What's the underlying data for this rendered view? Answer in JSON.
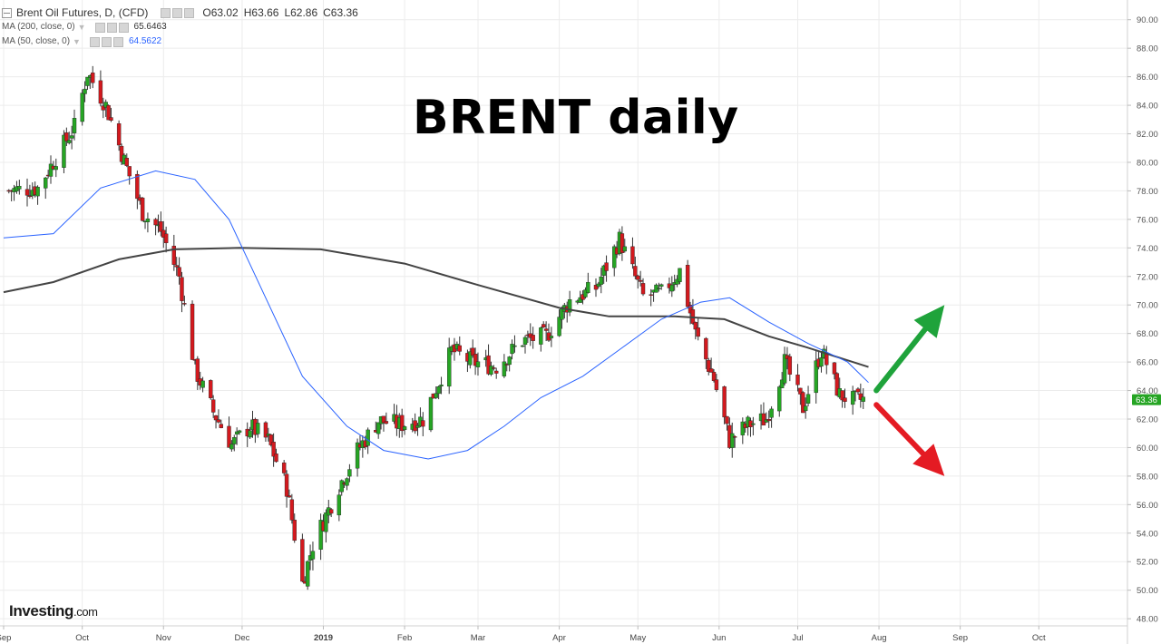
{
  "legend": {
    "symbol": "Brent Oil Futures, D, (CFD)",
    "ohlc": {
      "open": "O63.02",
      "high": "H63.66",
      "low": "L62.86",
      "close": "C63.36"
    },
    "ma200": {
      "label": "MA (200, close, 0)",
      "value": "65.6463",
      "color": "#444444"
    },
    "ma50": {
      "label": "MA (50, close, 0)",
      "value": "64.5622",
      "color": "#2962ff"
    }
  },
  "overlay_title": "BRENT daily",
  "logo": {
    "main": "Investing",
    "suffix": ".com"
  },
  "colors": {
    "up": "#26a524",
    "down": "#d3191e",
    "wick": "#333333",
    "grid": "#ececec",
    "price_tag": "#26a524",
    "arrow_up": "#1fa33b",
    "arrow_down": "#e41b23"
  },
  "icons": [
    "collapse-icon",
    "eye-icon",
    "settings-icon",
    "close-icon",
    "arrow-up-icon",
    "arrow-down-icon"
  ],
  "chart_data": {
    "type": "candlestick",
    "y_axis": {
      "ticks": [
        48,
        50,
        52,
        54,
        56,
        58,
        60,
        62,
        64,
        66,
        68,
        70,
        72,
        74,
        76,
        78,
        80,
        82,
        84,
        86,
        88,
        90
      ],
      "labels": [
        "48.00",
        "50.00",
        "52.00",
        "54.00",
        "56.00",
        "58.00",
        "60.00",
        "62.00",
        "64.00",
        "66.00",
        "68.00",
        "70.00",
        "72.00",
        "74.00",
        "76.00",
        "78.00",
        "80.00",
        "82.00",
        "84.00",
        "86.00",
        "88.00",
        "90.00"
      ],
      "range": [
        47.5,
        91.0
      ]
    },
    "x_axis": {
      "labels": [
        "Sep",
        "Oct",
        "Nov",
        "Dec",
        "2019",
        "Feb",
        "Mar",
        "Apr",
        "May",
        "Jun",
        "Jul",
        "Aug",
        "Sep",
        "Oct"
      ],
      "range": [
        "2018-09-01",
        "2019-10-31"
      ]
    },
    "last_price": "63.36",
    "key_points": [
      {
        "date": "2018-09-01",
        "close": 78.0
      },
      {
        "date": "2018-09-14",
        "close": 78.2
      },
      {
        "date": "2018-09-28",
        "close": 82.5
      },
      {
        "date": "2018-10-03",
        "close": 86.3
      },
      {
        "date": "2018-10-10",
        "close": 84.0
      },
      {
        "date": "2018-10-17",
        "close": 80.1
      },
      {
        "date": "2018-10-24",
        "close": 76.5
      },
      {
        "date": "2018-10-31",
        "close": 75.2
      },
      {
        "date": "2018-11-07",
        "close": 72.0
      },
      {
        "date": "2018-11-13",
        "close": 65.5
      },
      {
        "date": "2018-11-20",
        "close": 62.5
      },
      {
        "date": "2018-11-27",
        "close": 60.2
      },
      {
        "date": "2018-12-04",
        "close": 61.5
      },
      {
        "date": "2018-12-11",
        "close": 60.5
      },
      {
        "date": "2018-12-18",
        "close": 57.2
      },
      {
        "date": "2018-12-24",
        "close": 50.5
      },
      {
        "date": "2018-12-28",
        "close": 53.2
      },
      {
        "date": "2019-01-07",
        "close": 57.3
      },
      {
        "date": "2019-01-14",
        "close": 59.8
      },
      {
        "date": "2019-01-22",
        "close": 61.9
      },
      {
        "date": "2019-01-30",
        "close": 61.6
      },
      {
        "date": "2019-02-08",
        "close": 62.0
      },
      {
        "date": "2019-02-19",
        "close": 66.8
      },
      {
        "date": "2019-02-27",
        "close": 66.0
      },
      {
        "date": "2019-03-08",
        "close": 65.7
      },
      {
        "date": "2019-03-18",
        "close": 67.5
      },
      {
        "date": "2019-03-27",
        "close": 67.8
      },
      {
        "date": "2019-04-05",
        "close": 70.3
      },
      {
        "date": "2019-04-15",
        "close": 71.2
      },
      {
        "date": "2019-04-24",
        "close": 74.6
      },
      {
        "date": "2019-05-03",
        "close": 70.6
      },
      {
        "date": "2019-05-10",
        "close": 70.8
      },
      {
        "date": "2019-05-17",
        "close": 72.4
      },
      {
        "date": "2019-05-23",
        "close": 68.0
      },
      {
        "date": "2019-05-30",
        "close": 64.8
      },
      {
        "date": "2019-06-05",
        "close": 60.5
      },
      {
        "date": "2019-06-12",
        "close": 61.6
      },
      {
        "date": "2019-06-19",
        "close": 62.0
      },
      {
        "date": "2019-06-26",
        "close": 66.0
      },
      {
        "date": "2019-07-03",
        "close": 62.8
      },
      {
        "date": "2019-07-10",
        "close": 66.8
      },
      {
        "date": "2019-07-17",
        "close": 63.7
      },
      {
        "date": "2019-07-22",
        "close": 63.3
      },
      {
        "date": "2019-07-26",
        "close": 63.36
      }
    ],
    "ma50_points": [
      {
        "date": "2018-09-01",
        "value": 74.7
      },
      {
        "date": "2018-09-20",
        "value": 75.0
      },
      {
        "date": "2018-10-08",
        "value": 78.2
      },
      {
        "date": "2018-10-29",
        "value": 79.4
      },
      {
        "date": "2018-11-13",
        "value": 78.8
      },
      {
        "date": "2018-11-26",
        "value": 76.0
      },
      {
        "date": "2018-12-10",
        "value": 70.5
      },
      {
        "date": "2018-12-24",
        "value": 65.0
      },
      {
        "date": "2019-01-10",
        "value": 61.5
      },
      {
        "date": "2019-01-24",
        "value": 59.8
      },
      {
        "date": "2019-02-10",
        "value": 59.2
      },
      {
        "date": "2019-02-25",
        "value": 59.8
      },
      {
        "date": "2019-03-11",
        "value": 61.5
      },
      {
        "date": "2019-03-25",
        "value": 63.5
      },
      {
        "date": "2019-04-10",
        "value": 65.0
      },
      {
        "date": "2019-04-25",
        "value": 67.0
      },
      {
        "date": "2019-05-10",
        "value": 69.0
      },
      {
        "date": "2019-05-25",
        "value": 70.2
      },
      {
        "date": "2019-06-05",
        "value": 70.5
      },
      {
        "date": "2019-06-20",
        "value": 68.8
      },
      {
        "date": "2019-07-05",
        "value": 67.3
      },
      {
        "date": "2019-07-20",
        "value": 66.0
      },
      {
        "date": "2019-07-28",
        "value": 64.56
      }
    ],
    "ma200_points": [
      {
        "date": "2018-09-01",
        "value": 70.9
      },
      {
        "date": "2018-09-20",
        "value": 71.6
      },
      {
        "date": "2018-10-15",
        "value": 73.2
      },
      {
        "date": "2018-11-05",
        "value": 73.9
      },
      {
        "date": "2018-11-30",
        "value": 74.0
      },
      {
        "date": "2018-12-31",
        "value": 73.9
      },
      {
        "date": "2019-02-01",
        "value": 72.9
      },
      {
        "date": "2019-03-01",
        "value": 71.4
      },
      {
        "date": "2019-04-01",
        "value": 69.8
      },
      {
        "date": "2019-04-20",
        "value": 69.2
      },
      {
        "date": "2019-05-15",
        "value": 69.2
      },
      {
        "date": "2019-06-03",
        "value": 69.0
      },
      {
        "date": "2019-06-20",
        "value": 67.8
      },
      {
        "date": "2019-07-05",
        "value": 67.0
      },
      {
        "date": "2019-07-28",
        "value": 65.65
      }
    ],
    "projection_arrows": [
      {
        "direction": "up",
        "from": {
          "date": "2019-07-31",
          "price": 64.0
        },
        "to": {
          "date": "2019-08-26",
          "price": 70.0
        }
      },
      {
        "direction": "down",
        "from": {
          "date": "2019-07-31",
          "price": 63.0
        },
        "to": {
          "date": "2019-08-26",
          "price": 58.0
        }
      }
    ]
  }
}
